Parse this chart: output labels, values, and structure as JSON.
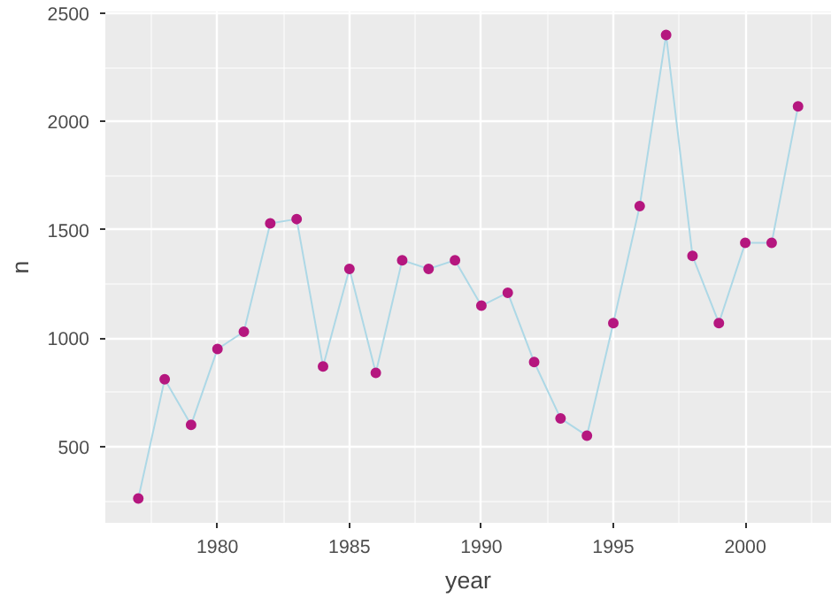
{
  "chart_data": {
    "type": "line",
    "xlabel": "year",
    "ylabel": "n",
    "x": [
      1977,
      1978,
      1979,
      1980,
      1981,
      1982,
      1983,
      1984,
      1985,
      1986,
      1987,
      1988,
      1989,
      1990,
      1991,
      1992,
      1993,
      1994,
      1995,
      1996,
      1997,
      1998,
      1999,
      2000,
      2001,
      2002
    ],
    "series": [
      {
        "color": "#add8e6",
        "marker": "none",
        "values": [
          260,
          810,
          600,
          950,
          1030,
          1530,
          1550,
          870,
          1320,
          840,
          1360,
          1320,
          1360,
          1150,
          1210,
          890,
          630,
          550,
          1070,
          1610,
          2400,
          1380,
          1070,
          1440,
          1440,
          2070
        ]
      },
      {
        "type": "scatter",
        "color": "#b5177f",
        "values": [
          260,
          810,
          600,
          950,
          1030,
          1530,
          1550,
          870,
          1320,
          840,
          1360,
          1320,
          1360,
          1150,
          1210,
          890,
          630,
          550,
          1070,
          1610,
          2400,
          1380,
          1070,
          1440,
          1440,
          2070
        ]
      }
    ],
    "marker": "circle",
    "line_style": "solid",
    "grid": true,
    "xlim": [
      1975.75,
      2003.25
    ],
    "ylim": [
      148,
      2508
    ],
    "xticks": [
      1980,
      1985,
      1990,
      1995,
      2000
    ],
    "yticks": [
      500,
      1000,
      1500,
      2000,
      2500
    ]
  }
}
